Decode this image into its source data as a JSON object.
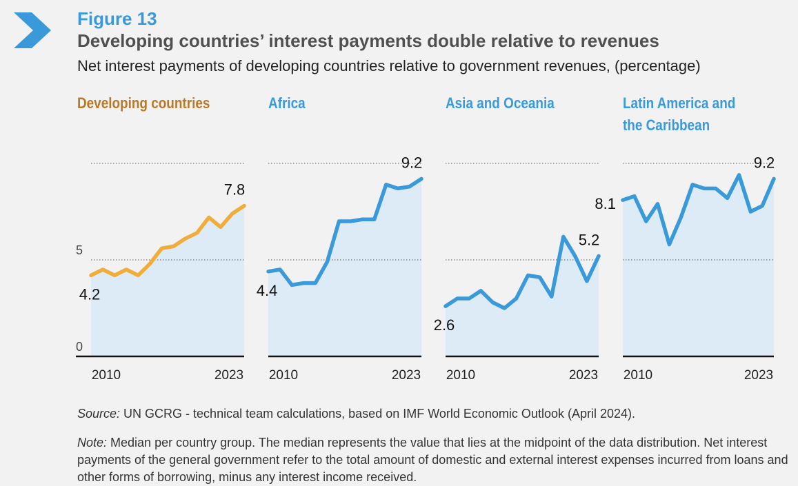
{
  "header": {
    "figure_label": "Figure 13",
    "title": "Developing countries’ interest payments double relative to revenues",
    "subtitle": "Net interest payments of developing countries relative to government revenues, (percentage)"
  },
  "colors": {
    "accent_blue": "#3a9ad9",
    "dev_orange": "#f0ad3c",
    "dev_title": "#b87a2a",
    "area_fill": "#dcebf6"
  },
  "panels": [
    {
      "title_lines": [
        "Developing countries"
      ]
    },
    {
      "title_lines": [
        "Africa"
      ]
    },
    {
      "title_lines": [
        "Asia and Oceania"
      ]
    },
    {
      "title_lines": [
        "Latin America and",
        "the Caribbean"
      ]
    }
  ],
  "chart_data": {
    "type": "area",
    "title": "Net interest payments of developing countries relative to government revenues, (percentage)",
    "x": [
      2010,
      2011,
      2012,
      2013,
      2014,
      2015,
      2016,
      2017,
      2018,
      2019,
      2020,
      2021,
      2022,
      2023
    ],
    "x_ticks": [
      "2010",
      "2023"
    ],
    "y_ticks": [
      "0",
      "5"
    ],
    "ylim": [
      0,
      10
    ],
    "series": [
      {
        "name": "Developing countries",
        "color": "#f0ad3c",
        "values": [
          4.2,
          4.5,
          4.2,
          4.5,
          4.2,
          4.8,
          5.6,
          5.7,
          6.1,
          6.4,
          7.2,
          6.7,
          7.4,
          7.8
        ],
        "start_label": "4.2",
        "end_label": "7.8"
      },
      {
        "name": "Africa",
        "color": "#3a9ad9",
        "values": [
          4.4,
          4.5,
          3.7,
          3.8,
          3.8,
          4.9,
          7.0,
          7.0,
          7.1,
          7.1,
          8.9,
          8.7,
          8.8,
          9.2
        ],
        "start_label": "4.4",
        "end_label": "9.2"
      },
      {
        "name": "Asia and Oceania",
        "color": "#3a9ad9",
        "values": [
          2.6,
          3.0,
          3.0,
          3.4,
          2.8,
          2.5,
          3.0,
          4.2,
          4.1,
          3.1,
          6.2,
          5.2,
          3.9,
          5.2
        ],
        "start_label": "2.6",
        "end_label": "5.2"
      },
      {
        "name": "Latin America and the Caribbean",
        "color": "#3a9ad9",
        "values": [
          8.1,
          8.3,
          7.0,
          7.9,
          5.8,
          7.2,
          8.9,
          8.7,
          8.7,
          8.2,
          9.4,
          7.5,
          7.8,
          9.2
        ],
        "start_label": "8.1",
        "end_label": "9.2"
      }
    ]
  },
  "footer": {
    "source_label": "Source:",
    "source_text": " UN GCRG - technical team calculations, based on IMF World Economic Outlook (April 2024).",
    "note_label": "Note:",
    "note_text": " Median per country group. The median represents the value that lies at the midpoint of the data distribution. Net interest payments of the general government refer to the total amount of domestic and external interest expenses incurred from loans and other forms of borrowing, minus any interest income received."
  }
}
